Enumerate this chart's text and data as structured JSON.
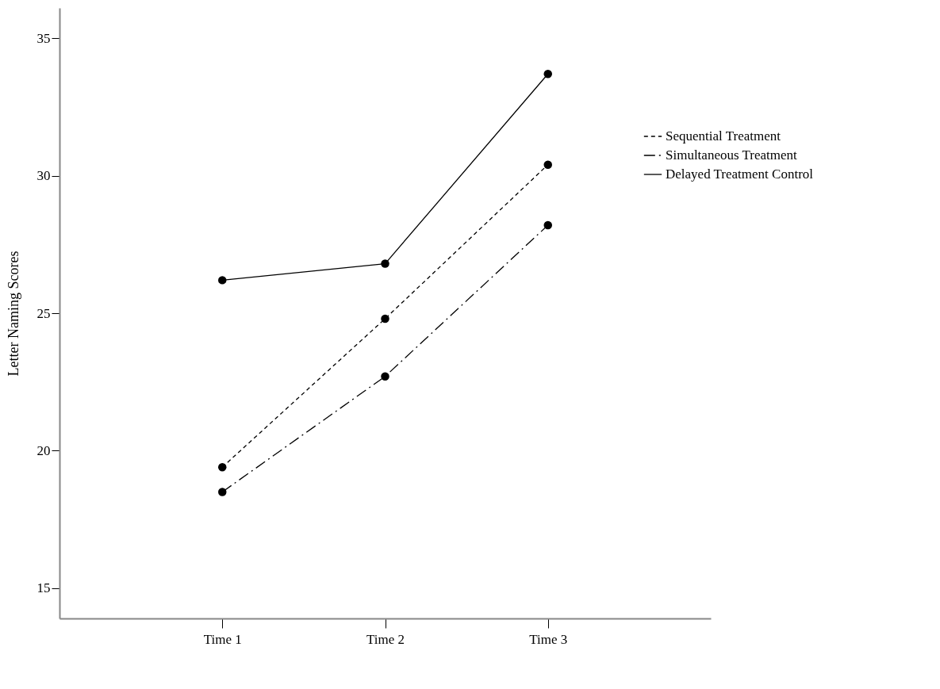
{
  "chart_data": {
    "type": "line",
    "ylabel": "Letter Naming Scores",
    "categories": [
      "Time 1",
      "Time 2",
      "Time 3"
    ],
    "ylim": [
      13.9,
      36.1
    ],
    "yticks": [
      15,
      20,
      25,
      30,
      35
    ],
    "grid": false,
    "legend": "right",
    "marker": "circle",
    "series": [
      {
        "name": "Sequential Treatment",
        "color": "#000000",
        "line_style": "dashed",
        "values": [
          19.4,
          24.8,
          30.4
        ]
      },
      {
        "name": "Simultaneous Treatment",
        "color": "#000000",
        "line_style": "dashdot",
        "values": [
          18.5,
          22.7,
          28.2
        ]
      },
      {
        "name": "Delayed Treatment Control",
        "color": "#000000",
        "line_style": "solid",
        "values": [
          26.2,
          26.8,
          33.7
        ]
      }
    ]
  }
}
